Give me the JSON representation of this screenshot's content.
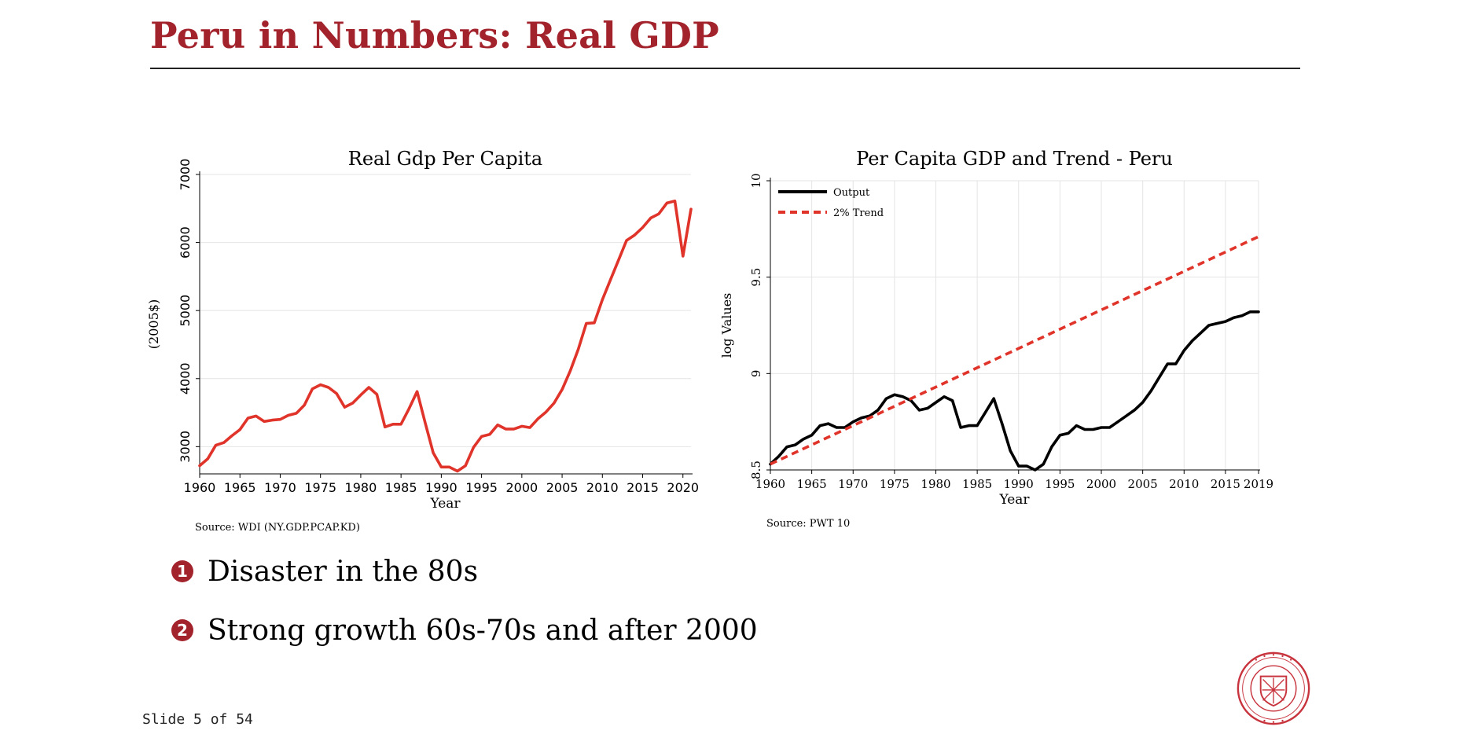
{
  "slide": {
    "title": "Peru in Numbers: Real GDP",
    "counter": "Slide 5 of 54",
    "accent_color": "#a3232d",
    "bullets": [
      {
        "number": "1",
        "text": "Disaster in the 80s"
      },
      {
        "number": "2",
        "text": "Strong growth 60s-70s and after 2000"
      }
    ],
    "logo": "carnegie-mellon-university-seal"
  },
  "chart_data": [
    {
      "type": "line",
      "title": "Real Gdp Per Capita",
      "xlabel": "Year",
      "ylabel": "(2005$)",
      "source": "Source: WDI (NY.GDP.PCAP.KD)",
      "xlim": [
        1960,
        2021
      ],
      "ylim": [
        2600,
        7000
      ],
      "xticks": [
        1960,
        1965,
        1970,
        1975,
        1980,
        1985,
        1990,
        1995,
        2000,
        2005,
        2010,
        2015,
        2020
      ],
      "yticks": [
        3000,
        4000,
        5000,
        6000,
        7000
      ],
      "grid": true,
      "legend": "none",
      "series": [
        {
          "color": "#e0342b",
          "x": [
            1960,
            1961,
            1962,
            1963,
            1964,
            1965,
            1966,
            1967,
            1968,
            1969,
            1970,
            1971,
            1972,
            1973,
            1974,
            1975,
            1976,
            1977,
            1978,
            1979,
            1980,
            1981,
            1982,
            1983,
            1984,
            1985,
            1986,
            1987,
            1988,
            1989,
            1990,
            1991,
            1992,
            1993,
            1994,
            1995,
            1996,
            1997,
            1998,
            1999,
            2000,
            2001,
            2002,
            2003,
            2004,
            2005,
            2006,
            2007,
            2008,
            2009,
            2010,
            2011,
            2012,
            2013,
            2014,
            2015,
            2016,
            2017,
            2018,
            2019,
            2020,
            2021
          ],
          "values": [
            2720,
            2820,
            3020,
            3060,
            3160,
            3250,
            3420,
            3450,
            3370,
            3390,
            3400,
            3460,
            3490,
            3610,
            3850,
            3910,
            3870,
            3780,
            3580,
            3640,
            3760,
            3870,
            3770,
            3290,
            3330,
            3330,
            3560,
            3810,
            3350,
            2910,
            2700,
            2700,
            2640,
            2720,
            2990,
            3150,
            3180,
            3320,
            3260,
            3260,
            3300,
            3280,
            3410,
            3510,
            3640,
            3840,
            4110,
            4430,
            4810,
            4820,
            5160,
            5450,
            5740,
            6030,
            6110,
            6220,
            6360,
            6420,
            6580,
            6610,
            5800,
            6490
          ]
        }
      ]
    },
    {
      "type": "line",
      "title": "Per Capita GDP and Trend - Peru",
      "xlabel": "Year",
      "ylabel": "log Values",
      "source": "Source: PWT 10",
      "xlim": [
        1960,
        2019
      ],
      "ylim": [
        8.5,
        10
      ],
      "xticks": [
        1960,
        1965,
        1970,
        1975,
        1980,
        1985,
        1990,
        1995,
        2000,
        2005,
        2010,
        2015,
        2019
      ],
      "yticks": [
        8.5,
        9,
        9.5,
        10
      ],
      "grid": true,
      "legend": "top-left",
      "series": [
        {
          "name": "Output",
          "color": "#000000",
          "style": "solid",
          "x": [
            1960,
            1961,
            1962,
            1963,
            1964,
            1965,
            1966,
            1967,
            1968,
            1969,
            1970,
            1971,
            1972,
            1973,
            1974,
            1975,
            1976,
            1977,
            1978,
            1979,
            1980,
            1981,
            1982,
            1983,
            1984,
            1985,
            1986,
            1987,
            1988,
            1989,
            1990,
            1991,
            1992,
            1993,
            1994,
            1995,
            1996,
            1997,
            1998,
            1999,
            2000,
            2001,
            2002,
            2003,
            2004,
            2005,
            2006,
            2007,
            2008,
            2009,
            2010,
            2011,
            2012,
            2013,
            2014,
            2015,
            2016,
            2017,
            2018,
            2019
          ],
          "values": [
            8.53,
            8.57,
            8.62,
            8.63,
            8.66,
            8.68,
            8.73,
            8.74,
            8.72,
            8.72,
            8.75,
            8.77,
            8.78,
            8.81,
            8.87,
            8.89,
            8.88,
            8.86,
            8.81,
            8.82,
            8.85,
            8.88,
            8.86,
            8.72,
            8.73,
            8.73,
            8.8,
            8.87,
            8.74,
            8.6,
            8.52,
            8.52,
            8.5,
            8.53,
            8.62,
            8.68,
            8.69,
            8.73,
            8.71,
            8.71,
            8.72,
            8.72,
            8.75,
            8.78,
            8.81,
            8.85,
            8.91,
            8.98,
            9.05,
            9.05,
            9.12,
            9.17,
            9.21,
            9.25,
            9.26,
            9.27,
            9.29,
            9.3,
            9.32,
            9.32
          ]
        },
        {
          "name": "2% Trend",
          "color": "#e0342b",
          "style": "dashed",
          "x": [
            1960,
            2019
          ],
          "values": [
            8.53,
            9.71
          ]
        }
      ]
    }
  ]
}
